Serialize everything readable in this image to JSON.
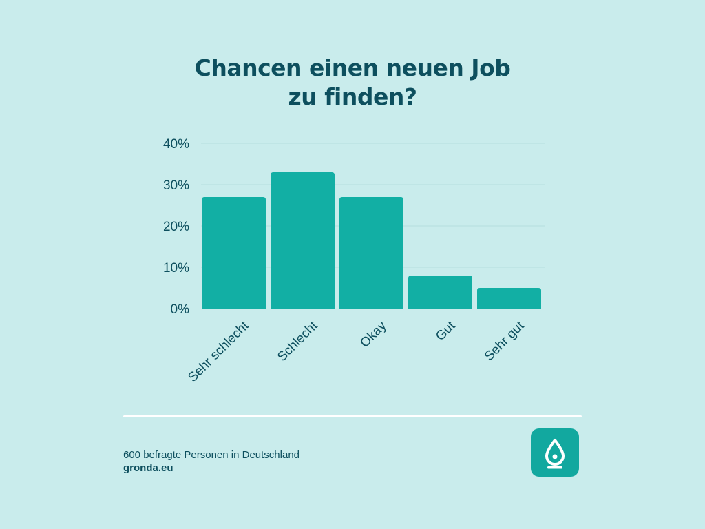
{
  "title_lines": [
    "Chancen einen neuen Job",
    "zu finden?"
  ],
  "footer": {
    "note": "600 befragte Personen in Deutschland",
    "site": "gronda.eu"
  },
  "logo": {
    "icon": "drop-icon"
  },
  "colors": {
    "background": "#c9ecec",
    "bar": "#12afa4",
    "text": "#0d4f5e",
    "grid": "#b5dede"
  },
  "chart_data": {
    "type": "bar",
    "categories": [
      "Sehr schlecht",
      "Schlecht",
      "Okay",
      "Gut",
      "Sehr gut"
    ],
    "values": [
      27,
      33,
      27,
      8,
      5
    ],
    "unit": "%",
    "ylim": [
      0,
      40
    ],
    "yticks": [
      0,
      10,
      20,
      30,
      40
    ],
    "ytick_labels": [
      "0%",
      "10%",
      "20%",
      "30%",
      "40%"
    ],
    "grid": true,
    "xlabel": "",
    "ylabel": ""
  }
}
